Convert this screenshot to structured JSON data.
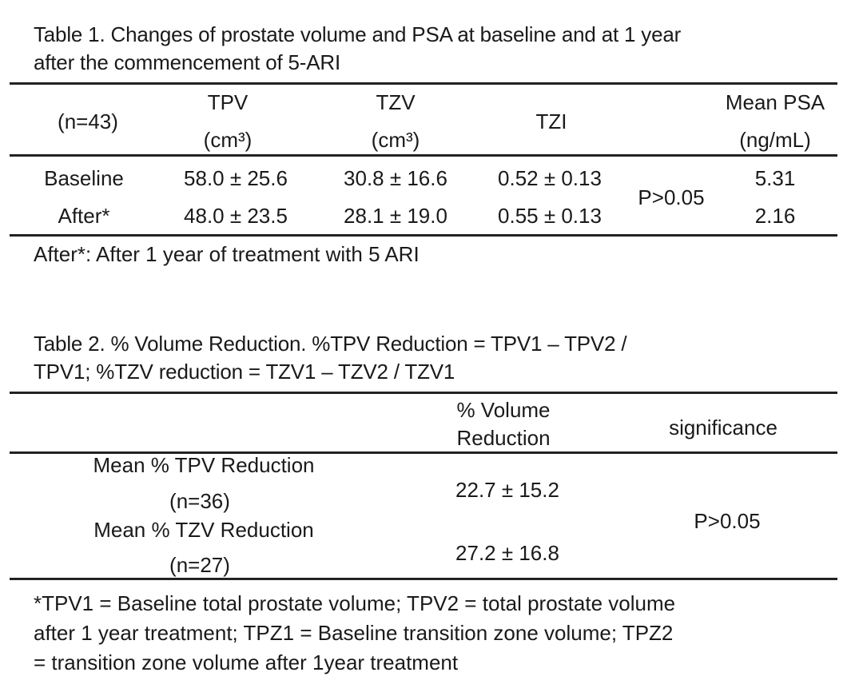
{
  "table1": {
    "caption_line1": "Table 1. Changes of prostate volume and PSA at baseline and at 1 year",
    "caption_line2": "after the commencement of 5-ARI",
    "headers": {
      "n": "(n=43)",
      "tpv": "TPV",
      "tpv_unit": "(cm³)",
      "tzv": "TZV",
      "tzv_unit": "(cm³)",
      "tzi": "TZI",
      "psa": "Mean PSA",
      "psa_unit": "(ng/mL)"
    },
    "rows": [
      {
        "label": "Baseline",
        "tpv": "58.0 ± 25.6",
        "tzv": "30.8 ± 16.6",
        "tzi": "0.52 ± 0.13",
        "psa": "5.31"
      },
      {
        "label": "After*",
        "tpv": "48.0 ± 23.5",
        "tzv": "28.1 ± 19.0",
        "tzi": "0.55 ± 0.13",
        "psa": "2.16"
      }
    ],
    "p_value": "P>0.05",
    "note": "After*: After 1 year of treatment with 5 ARI"
  },
  "table2": {
    "caption_line1": "Table 2. % Volume Reduction. %TPV Reduction = TPV1 – TPV2 /",
    "caption_line2": "TPV1; %TZV reduction = TZV1 – TZV2 / TZV1",
    "headers": {
      "volume_line1": "% Volume",
      "volume_line2": "Reduction",
      "significance": "significance"
    },
    "rows": [
      {
        "label": "Mean % TPV Reduction",
        "n": "(n=36)",
        "value": "22.7 ± 15.2"
      },
      {
        "label": "Mean % TZV Reduction",
        "n": "(n=27)",
        "value": "27.2 ± 16.8"
      }
    ],
    "p_value": "P>0.05",
    "footnote_line1": "*TPV1 = Baseline total prostate volume; TPV2 = total prostate volume",
    "footnote_line2": "after 1 year treatment; TPZ1 = Baseline transition zone volume; TPZ2",
    "footnote_line3": "= transition zone volume after 1year treatment"
  }
}
